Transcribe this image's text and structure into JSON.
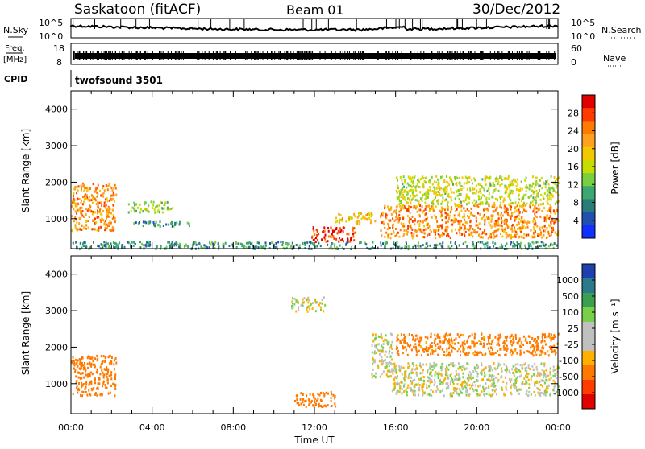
{
  "header": {
    "station": "Saskatoon (fitACF)",
    "beam": "Beam 01",
    "date": "30/Dec/2012"
  },
  "strips": {
    "nsky_label": "N.Sky",
    "nsky_ticks": [
      "10^5",
      "10^0"
    ],
    "nsearch_label": "N.Search",
    "nsearch_ticks": [
      "10^5",
      "10^0"
    ],
    "freq_label_1": "Freq.",
    "freq_label_2": "[MHz]",
    "freq_ticks": [
      "18",
      "8"
    ],
    "nave_label": "Nave",
    "nave_ticks": [
      "60",
      "0"
    ],
    "cpid_label": "CPID",
    "cpid_value": "twofsound 3501"
  },
  "panels": {
    "power": {
      "ylabel": "Slant Range [km]",
      "colorbar_label": "Power [dB]",
      "colorbar_ticks": [
        "28",
        "24",
        "20",
        "16",
        "12",
        "8",
        "4"
      ],
      "colorbar_colors": [
        "#e00000",
        "#ff3a00",
        "#ff7a00",
        "#ffa020",
        "#f2c800",
        "#c8dc00",
        "#78d040",
        "#3aa870",
        "#2a7c78",
        "#2050b0",
        "#1030ff"
      ]
    },
    "velocity": {
      "ylabel": "Slant Range [km]",
      "colorbar_label": "Velocity [m s⁻¹]",
      "colorbar_ticks": [
        "1000",
        "500",
        "100",
        "25",
        "-25",
        "-100",
        "-500",
        "-1000"
      ],
      "colorbar_colors": [
        "#1f3fb0",
        "#2a7a8a",
        "#3aa050",
        "#78d048",
        "#c0c0c0",
        "#c0c0c0",
        "#ffb000",
        "#ff7800",
        "#ff3c00",
        "#e00000"
      ]
    }
  },
  "axes": {
    "y_ticks": [
      "4000",
      "3000",
      "2000",
      "1000"
    ],
    "x_ticks": [
      "00:00",
      "04:00",
      "08:00",
      "12:00",
      "16:00",
      "20:00",
      "00:00"
    ],
    "xlabel": "Time UT"
  },
  "chart_data": [
    {
      "type": "heatmap",
      "title": "Saskatoon (fitACF) Beam 01 30/Dec/2012",
      "xlabel": "Time UT",
      "ylabel": "Slant Range [km]",
      "zlabel": "Power [dB]",
      "xlim": [
        0,
        24
      ],
      "ylim": [
        180,
        4500
      ],
      "zlim": [
        0,
        32
      ],
      "x_ticks": [
        "00:00",
        "04:00",
        "08:00",
        "12:00",
        "16:00",
        "20:00",
        "00:00"
      ],
      "y_ticks": [
        1000,
        2000,
        3000,
        4000
      ],
      "z_ticks": [
        4,
        8,
        12,
        16,
        20,
        24,
        28
      ],
      "echo_regions": [
        {
          "t": [
            0.0,
            2.2
          ],
          "range_km": [
            700,
            2000
          ],
          "value": 24
        },
        {
          "t": [
            3.0,
            5.8
          ],
          "range_km": [
            820,
            950
          ],
          "value": 8
        },
        {
          "t": [
            2.8,
            5.0
          ],
          "range_km": [
            1200,
            1500
          ],
          "value": 14
        },
        {
          "t": [
            11.8,
            14.0
          ],
          "range_km": [
            400,
            800
          ],
          "value": 30
        },
        {
          "t": [
            13.0,
            15.0
          ],
          "range_km": [
            900,
            1200
          ],
          "value": 20
        },
        {
          "t": [
            15.2,
            24.0
          ],
          "range_km": [
            500,
            1400
          ],
          "value": 24
        },
        {
          "t": [
            16.0,
            24.0
          ],
          "range_km": [
            1400,
            2200
          ],
          "value": 16
        },
        {
          "t": [
            0.0,
            24.0
          ],
          "range_km": [
            200,
            400
          ],
          "value": 8
        }
      ]
    },
    {
      "type": "heatmap",
      "title": "Saskatoon (fitACF) Beam 01 30/Dec/2012",
      "xlabel": "Time UT",
      "ylabel": "Slant Range [km]",
      "zlabel": "Velocity [m s⁻¹]",
      "xlim": [
        0,
        24
      ],
      "ylim": [
        180,
        4500
      ],
      "z_ticks": [
        1000,
        500,
        100,
        25,
        -25,
        -100,
        -500,
        -1000
      ],
      "echo_regions": [
        {
          "t": [
            0.0,
            2.2
          ],
          "range_km": [
            700,
            1800
          ],
          "value": -300
        },
        {
          "t": [
            11.0,
            13.0
          ],
          "range_km": [
            400,
            800
          ],
          "value": -200
        },
        {
          "t": [
            14.8,
            15.8
          ],
          "range_km": [
            1200,
            2400
          ],
          "value": 0
        },
        {
          "t": [
            15.8,
            24.0
          ],
          "range_km": [
            700,
            1600
          ],
          "value": 0
        },
        {
          "t": [
            16.0,
            24.0
          ],
          "range_km": [
            1800,
            2400
          ],
          "value": -150
        },
        {
          "t": [
            10.8,
            12.5
          ],
          "range_km": [
            3000,
            3400
          ],
          "value": 0
        }
      ]
    }
  ]
}
